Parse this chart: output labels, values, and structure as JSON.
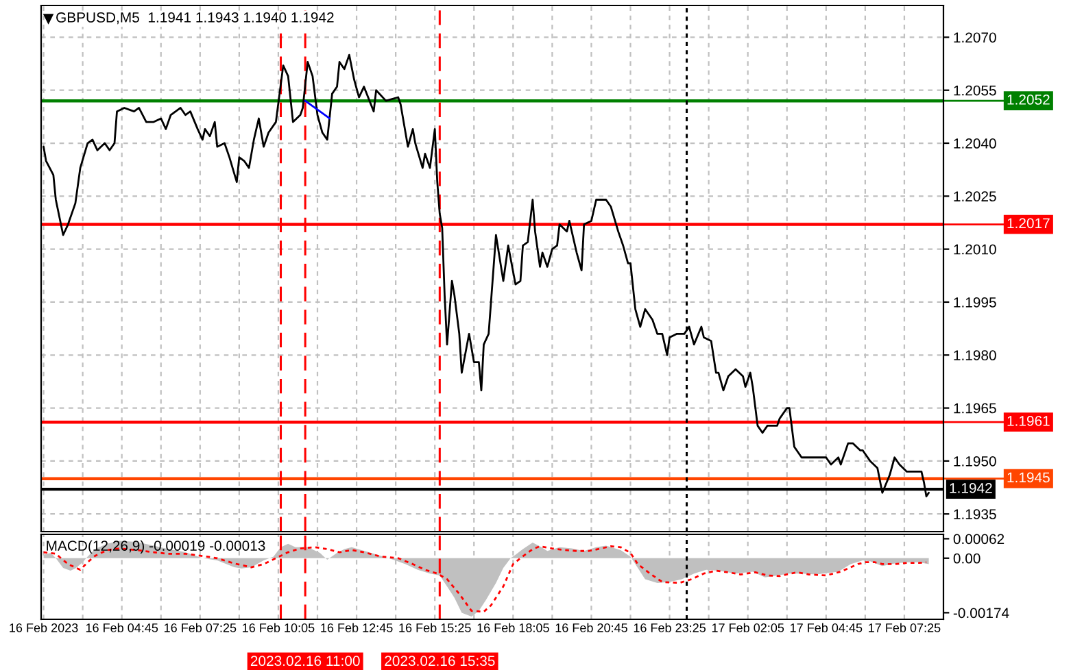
{
  "chart_data": [
    {
      "type": "line",
      "title": "GBPUSD,M5  1.1941 1.1943 1.1940 1.1942",
      "xlim": [
        "2023-02-16T02:00",
        "2023-02-17T08:45"
      ],
      "xticks": [
        {
          "value": "2023-02-16T02:05",
          "label": null
        },
        {
          "value": "2023-02-16T03:25",
          "label": null
        },
        {
          "value": "2023-02-16T04:45",
          "label": null
        },
        {
          "value": "2023-02-16T06:05",
          "label": null
        },
        {
          "value": "2023-02-16T07:25",
          "label": null
        },
        {
          "value": "2023-02-16T08:45",
          "label": null
        },
        {
          "value": "2023-02-16T10:05",
          "label": null
        },
        {
          "value": "2023-02-16T11:25",
          "label": null
        },
        {
          "value": "2023-02-16T12:45",
          "label": null
        },
        {
          "value": "2023-02-16T14:05",
          "label": null
        },
        {
          "value": "2023-02-16T15:25",
          "label": null
        },
        {
          "value": "2023-02-16T16:45",
          "label": null
        },
        {
          "value": "2023-02-16T18:05",
          "label": null
        },
        {
          "value": "2023-02-16T19:25",
          "label": null
        },
        {
          "value": "2023-02-16T20:45",
          "label": null
        },
        {
          "value": "2023-02-16T22:05",
          "label": null
        },
        {
          "value": "2023-02-16T23:25",
          "label": null
        },
        {
          "value": "2023-02-17T00:45",
          "label": null
        },
        {
          "value": "2023-02-17T02:05",
          "label": null
        },
        {
          "value": "2023-02-17T03:25",
          "label": null
        },
        {
          "value": "2023-02-17T04:45",
          "label": null
        },
        {
          "value": "2023-02-17T06:05",
          "label": null
        },
        {
          "value": "2023-02-17T07:25",
          "label": null
        }
      ],
      "ylim": [
        1.193,
        1.2079
      ],
      "yticks": [
        1.1935,
        {
          "value": 1.195,
          "label": "1.1950"
        },
        1.1965,
        {
          "value": 1.198,
          "label": "1.1980"
        },
        1.1995,
        {
          "value": 1.201,
          "label": "1.2010"
        },
        1.2025,
        {
          "value": 1.204,
          "label": "1.2040"
        },
        1.2055,
        {
          "value": 1.207,
          "label": "1.2070"
        }
      ],
      "grid": true,
      "tick_labels": "y",
      "ref_lines": [
        {
          "axis": "y",
          "value": 1.2052,
          "label": "1.2052",
          "color": "#008000"
        },
        {
          "axis": "y",
          "value": 1.2017,
          "label": "1.2017",
          "color": "#ff0000"
        },
        {
          "axis": "y",
          "value": 1.1961,
          "label": "1.1961",
          "color": "#ff0000"
        },
        {
          "axis": "y",
          "value": 1.1945,
          "label": "1.1945",
          "color": "#ff4500"
        },
        {
          "axis": "y",
          "value": 1.1942,
          "label": "1.1942",
          "color": "#000000"
        },
        {
          "axis": "x",
          "value": "2023-02-16T10:10",
          "color": "#ff0000",
          "line_style": "dashed"
        },
        {
          "axis": "x",
          "value": "2023-02-16T11:00",
          "color": "#ff0000",
          "line_style": "dashed"
        },
        {
          "axis": "x",
          "value": "2023-02-16T15:35",
          "color": "#ff0000",
          "line_style": "dashed"
        },
        {
          "axis": "x",
          "value": "2023-02-17T00:00",
          "color": "#000000",
          "line_style": "dotted"
        }
      ],
      "series": [
        {
          "color": "#000000",
          "x": [
            "2023-02-16T02:05",
            "2023-02-16T02:10",
            "2023-02-16T02:25",
            "2023-02-16T02:30",
            "2023-02-16T02:45",
            "2023-02-16T02:55",
            "2023-02-16T03:10",
            "2023-02-16T03:20",
            "2023-02-16T03:35",
            "2023-02-16T03:45",
            "2023-02-16T03:55",
            "2023-02-16T04:10",
            "2023-02-16T04:20",
            "2023-02-16T04:30",
            "2023-02-16T04:35",
            "2023-02-16T04:50",
            "2023-02-16T05:10",
            "2023-02-16T05:20",
            "2023-02-16T05:35",
            "2023-02-16T05:50",
            "2023-02-16T06:05",
            "2023-02-16T06:15",
            "2023-02-16T06:25",
            "2023-02-16T06:45",
            "2023-02-16T06:55",
            "2023-02-16T07:05",
            "2023-02-16T07:20",
            "2023-02-16T07:30",
            "2023-02-16T07:35",
            "2023-02-16T07:45",
            "2023-02-16T07:55",
            "2023-02-16T08:00",
            "2023-02-16T08:15",
            "2023-02-16T08:25",
            "2023-02-16T08:40",
            "2023-02-16T08:45",
            "2023-02-16T08:55",
            "2023-02-16T09:05",
            "2023-02-16T09:15",
            "2023-02-16T09:25",
            "2023-02-16T09:35",
            "2023-02-16T09:45",
            "2023-02-16T10:00",
            "2023-02-16T10:15",
            "2023-02-16T10:25",
            "2023-02-16T10:35",
            "2023-02-16T10:50",
            "2023-02-16T10:55",
            "2023-02-16T11:05",
            "2023-02-16T11:15",
            "2023-02-16T11:25",
            "2023-02-16T11:35",
            "2023-02-16T11:45",
            "2023-02-16T11:55",
            "2023-02-16T12:05",
            "2023-02-16T12:10",
            "2023-02-16T12:20",
            "2023-02-16T12:30",
            "2023-02-16T12:40",
            "2023-02-16T12:50",
            "2023-02-16T13:00",
            "2023-02-16T13:20",
            "2023-02-16T13:25",
            "2023-02-16T13:45",
            "2023-02-16T14:10",
            "2023-02-16T14:15",
            "2023-02-16T14:30",
            "2023-02-16T14:40",
            "2023-02-16T14:45",
            "2023-02-16T15:00",
            "2023-02-16T15:05",
            "2023-02-16T15:15",
            "2023-02-16T15:25",
            "2023-02-16T15:30",
            "2023-02-16T15:35",
            "2023-02-16T15:40",
            "2023-02-16T15:45",
            "2023-02-16T15:50",
            "2023-02-16T16:00",
            "2023-02-16T16:05",
            "2023-02-16T16:15",
            "2023-02-16T16:20",
            "2023-02-16T16:35",
            "2023-02-16T16:45",
            "2023-02-16T16:55",
            "2023-02-16T17:00",
            "2023-02-16T17:05",
            "2023-02-16T17:15",
            "2023-02-16T17:30",
            "2023-02-16T17:45",
            "2023-02-16T17:55",
            "2023-02-16T18:10",
            "2023-02-16T18:20",
            "2023-02-16T18:25",
            "2023-02-16T18:35",
            "2023-02-16T18:45",
            "2023-02-16T18:50",
            "2023-02-16T19:00",
            "2023-02-16T19:05",
            "2023-02-16T19:15",
            "2023-02-16T19:25",
            "2023-02-16T19:35",
            "2023-02-16T19:40",
            "2023-02-16T19:55",
            "2023-02-16T20:00",
            "2023-02-16T20:15",
            "2023-02-16T20:25",
            "2023-02-16T20:30",
            "2023-02-16T20:45",
            "2023-02-16T20:55",
            "2023-02-16T21:15",
            "2023-02-16T21:25",
            "2023-02-16T21:40",
            "2023-02-16T21:50",
            "2023-02-16T22:00",
            "2023-02-16T22:05",
            "2023-02-16T22:15",
            "2023-02-16T22:25",
            "2023-02-16T22:35",
            "2023-02-16T22:50",
            "2023-02-16T23:00",
            "2023-02-16T23:10",
            "2023-02-16T23:20",
            "2023-02-16T23:25",
            "2023-02-16T23:40",
            "2023-02-16T23:55",
            "2023-02-17T00:05",
            "2023-02-17T00:15",
            "2023-02-17T00:30",
            "2023-02-17T00:35",
            "2023-02-17T00:50",
            "2023-02-17T01:00",
            "2023-02-17T01:05",
            "2023-02-17T01:15",
            "2023-02-17T01:25",
            "2023-02-17T01:40",
            "2023-02-17T01:55",
            "2023-02-17T02:00",
            "2023-02-17T02:10",
            "2023-02-17T02:15",
            "2023-02-17T02:25",
            "2023-02-17T02:35",
            "2023-02-17T02:45",
            "2023-02-17T03:05",
            "2023-02-17T03:10",
            "2023-02-17T03:25",
            "2023-02-17T03:30",
            "2023-02-17T03:40",
            "2023-02-17T03:55",
            "2023-02-17T04:00",
            "2023-02-17T04:10",
            "2023-02-17T04:25",
            "2023-02-17T04:45",
            "2023-02-17T04:55",
            "2023-02-17T05:10",
            "2023-02-17T05:15",
            "2023-02-17T05:30",
            "2023-02-17T05:40",
            "2023-02-17T05:55",
            "2023-02-17T06:00",
            "2023-02-17T06:15",
            "2023-02-17T06:30",
            "2023-02-17T06:40",
            "2023-02-17T06:55",
            "2023-02-17T07:05",
            "2023-02-17T07:15",
            "2023-02-17T07:30",
            "2023-02-17T07:40",
            "2023-02-17T08:00",
            "2023-02-17T08:05",
            "2023-02-17T08:10",
            "2023-02-17T08:15"
          ],
          "values": [
            1.2039,
            1.2035,
            1.2031,
            1.2024,
            1.2014,
            1.2017,
            1.2023,
            1.2033,
            1.204,
            1.2041,
            1.2038,
            1.204,
            1.2038,
            1.204,
            1.2049,
            1.205,
            1.2049,
            1.205,
            1.2046,
            1.2046,
            1.2047,
            1.2044,
            1.2048,
            1.205,
            1.2048,
            1.2049,
            1.2044,
            1.2041,
            1.2044,
            1.2042,
            1.2046,
            1.2039,
            1.204,
            1.2036,
            1.2029,
            1.2036,
            1.2035,
            1.2033,
            1.2041,
            1.2047,
            1.2039,
            1.2043,
            1.2046,
            1.2062,
            1.2059,
            1.2046,
            1.2048,
            1.205,
            1.2063,
            1.2059,
            1.2048,
            1.2043,
            1.2041,
            1.2054,
            1.2056,
            1.2063,
            1.2061,
            1.2065,
            1.2058,
            1.2053,
            1.2056,
            1.2049,
            1.2055,
            1.2052,
            1.2053,
            1.2051,
            1.2039,
            1.2044,
            1.204,
            1.2033,
            1.2037,
            1.2033,
            1.2044,
            1.2029,
            1.202,
            1.2016,
            1.1997,
            1.1983,
            1.2001,
            1.1997,
            1.1986,
            1.1975,
            1.1986,
            1.1978,
            1.1978,
            1.197,
            1.1983,
            1.1986,
            1.2014,
            1.2001,
            1.2011,
            1.2,
            1.2001,
            1.2011,
            1.2012,
            1.2024,
            1.2015,
            1.2005,
            1.2009,
            1.2005,
            1.201,
            1.2011,
            1.2017,
            1.2015,
            1.2018,
            1.2009,
            1.2004,
            1.2017,
            1.2018,
            1.2024,
            1.2024,
            1.2022,
            1.2015,
            1.2011,
            1.2006,
            1.2006,
            1.1993,
            1.1988,
            1.1993,
            1.199,
            1.1986,
            1.1986,
            1.198,
            1.1985,
            1.1986,
            1.1986,
            1.1988,
            1.1983,
            1.1988,
            1.1985,
            1.1984,
            1.1975,
            1.1975,
            1.197,
            1.1974,
            1.1976,
            1.1974,
            1.1971,
            1.1975,
            1.1971,
            1.196,
            1.1958,
            1.196,
            1.196,
            1.1962,
            1.1965,
            1.1965,
            1.1954,
            1.1951,
            1.1951,
            1.1951,
            1.1951,
            1.1951,
            1.1949,
            1.1951,
            1.1949,
            1.1955,
            1.1955,
            1.1953,
            1.1953,
            1.195,
            1.1948,
            1.1941,
            1.1946,
            1.1951,
            1.1949,
            1.1947,
            1.1947,
            1.1947,
            1.1944,
            1.194,
            1.1941
          ]
        },
        {
          "color": "#0000ff",
          "x": [
            "2023-02-16T11:00",
            "2023-02-16T11:50"
          ],
          "values": [
            1.2052,
            1.2047
          ]
        }
      ]
    },
    {
      "type": "area",
      "title": "MACD(12,26,9) -0.00019 -0.00013",
      "xlim": [
        "2023-02-16T02:00",
        "2023-02-17T08:45"
      ],
      "xticks": [
        {
          "value": "2023-02-16T02:05",
          "label": "16 Feb 2023"
        },
        {
          "value": "2023-02-16T03:25",
          "label": null
        },
        {
          "value": "2023-02-16T04:45",
          "label": "16 Feb 04:45"
        },
        {
          "value": "2023-02-16T06:05",
          "label": null
        },
        {
          "value": "2023-02-16T07:25",
          "label": "16 Feb 07:25"
        },
        {
          "value": "2023-02-16T08:45",
          "label": null
        },
        {
          "value": "2023-02-16T10:05",
          "label": "16 Feb 10:05"
        },
        {
          "value": "2023-02-16T11:25",
          "label": null
        },
        {
          "value": "2023-02-16T12:45",
          "label": "16 Feb 12:45"
        },
        {
          "value": "2023-02-16T14:05",
          "label": null
        },
        {
          "value": "2023-02-16T15:25",
          "label": "16 Feb 15:25"
        },
        {
          "value": "2023-02-16T16:45",
          "label": null
        },
        {
          "value": "2023-02-16T18:05",
          "label": "16 Feb 18:05"
        },
        {
          "value": "2023-02-16T19:25",
          "label": null
        },
        {
          "value": "2023-02-16T20:45",
          "label": "16 Feb 20:45"
        },
        {
          "value": "2023-02-16T22:05",
          "label": null
        },
        {
          "value": "2023-02-16T23:25",
          "label": "16 Feb 23:25"
        },
        {
          "value": "2023-02-17T00:45",
          "label": null
        },
        {
          "value": "2023-02-17T02:05",
          "label": "17 Feb 02:05"
        },
        {
          "value": "2023-02-17T03:25",
          "label": null
        },
        {
          "value": "2023-02-17T04:45",
          "label": "17 Feb 04:45"
        },
        {
          "value": "2023-02-17T06:05",
          "label": null
        },
        {
          "value": "2023-02-17T07:25",
          "label": "17 Feb 07:25"
        }
      ],
      "ylim": [
        -0.00195,
        0.00076
      ],
      "yticks": [
        0.00062,
        {
          "value": 0,
          "label": "0.00"
        },
        -0.00174
      ],
      "grid": "x",
      "ref_lines": [
        {
          "axis": "x",
          "value": "2023-02-16T10:10",
          "color": "#ff0000",
          "line_style": "dashed"
        },
        {
          "axis": "x",
          "value": "2023-02-16T11:00",
          "label": "2023.02.16 11:00",
          "color": "#ff0000",
          "line_style": "dashed"
        },
        {
          "axis": "x",
          "value": "2023-02-16T15:35",
          "label": "2023.02.16 15:35",
          "color": "#ff0000",
          "line_style": "dashed"
        },
        {
          "axis": "x",
          "value": "2023-02-17T00:00",
          "color": "#000000",
          "line_style": "dotted"
        }
      ],
      "series": [
        {
          "type": "area",
          "color": "#c0c0c0",
          "x": [
            "2023-02-16T02:05",
            "2023-02-16T02:20",
            "2023-02-16T02:30",
            "2023-02-16T02:45",
            "2023-02-16T03:00",
            "2023-02-16T03:10",
            "2023-02-16T03:25",
            "2023-02-16T03:35",
            "2023-02-16T03:50",
            "2023-02-16T04:15",
            "2023-02-16T04:40",
            "2023-02-16T05:15",
            "2023-02-16T05:50",
            "2023-02-16T06:20",
            "2023-02-16T06:55",
            "2023-02-16T07:30",
            "2023-02-16T08:00",
            "2023-02-16T08:35",
            "2023-02-16T08:50",
            "2023-02-16T09:10",
            "2023-02-16T09:35",
            "2023-02-16T09:55",
            "2023-02-16T10:10",
            "2023-02-16T10:25",
            "2023-02-16T10:40",
            "2023-02-16T11:05",
            "2023-02-16T11:30",
            "2023-02-16T11:45",
            "2023-02-16T12:05",
            "2023-02-16T12:20",
            "2023-02-16T12:35",
            "2023-02-16T12:55",
            "2023-02-16T13:10",
            "2023-02-16T13:35",
            "2023-02-16T14:00",
            "2023-02-16T14:25",
            "2023-02-16T14:50",
            "2023-02-16T15:15",
            "2023-02-16T15:35",
            "2023-02-16T15:50",
            "2023-02-16T16:05",
            "2023-02-16T16:20",
            "2023-02-16T16:40",
            "2023-02-16T16:55",
            "2023-02-16T17:10",
            "2023-02-16T17:30",
            "2023-02-16T17:45",
            "2023-02-16T18:00",
            "2023-02-16T18:10",
            "2023-02-16T18:25",
            "2023-02-16T18:45",
            "2023-02-16T19:00",
            "2023-02-16T19:15",
            "2023-02-16T19:40",
            "2023-02-16T20:05",
            "2023-02-16T20:30",
            "2023-02-16T20:55",
            "2023-02-16T21:15",
            "2023-02-16T21:45",
            "2023-02-16T22:05",
            "2023-02-16T22:20",
            "2023-02-16T22:35",
            "2023-02-16T23:00",
            "2023-02-16T23:25",
            "2023-02-16T23:50",
            "2023-02-17T00:15",
            "2023-02-17T00:40",
            "2023-02-17T01:05",
            "2023-02-17T01:40",
            "2023-02-17T02:15",
            "2023-02-17T02:40",
            "2023-02-17T03:05",
            "2023-02-17T03:30",
            "2023-02-17T03:55",
            "2023-02-17T04:25",
            "2023-02-17T05:10",
            "2023-02-17T05:35",
            "2023-02-17T06:00",
            "2023-02-17T06:15",
            "2023-02-17T06:40",
            "2023-02-17T07:05",
            "2023-02-17T07:30",
            "2023-02-17T07:55",
            "2023-02-17T08:15"
          ],
          "values": [
            0.00011,
            0.00017,
            0,
            -0.00031,
            -0.0004,
            -0.00033,
            -0.00013,
            5e-05,
            0.00029,
            0.00046,
            0.00055,
            0.00052,
            0.0004,
            0.00029,
            0.00019,
            0,
            -7e-05,
            -0.00029,
            -0.00033,
            -0.00029,
            -7e-05,
            5e-05,
            0.00035,
            0.00046,
            0.00035,
            0.00035,
            0.00017,
            -5e-05,
            0.00017,
            0.00029,
            0.00035,
            0.00026,
            0.00019,
            7e-05,
            -5e-05,
            -0.00019,
            -0.00037,
            -0.00049,
            -0.00055,
            -0.0009,
            -0.00126,
            -0.00174,
            -0.00186,
            -0.00168,
            -0.00132,
            -0.00079,
            -0.00031,
            0,
            0.00011,
            0.00029,
            0.0005,
            0.00038,
            0.00023,
            0.00035,
            0.00031,
            0.00023,
            0.00035,
            0.0004,
            0.00026,
            5e-05,
            -0.00031,
            -0.00067,
            -0.00079,
            -0.00076,
            -0.00067,
            -0.00049,
            -0.00037,
            -0.0004,
            -0.00049,
            -0.00043,
            -0.00061,
            -0.00055,
            -0.00049,
            -0.00049,
            -0.00052,
            -0.00043,
            -0.00019,
            -7e-05,
            -0.0001,
            -0.00025,
            -0.00017,
            -0.00013,
            -0.00013,
            -0.00019
          ]
        },
        {
          "type": "line",
          "color": "#ff0000",
          "line_style": "dotted",
          "x": [
            "2023-02-16T02:05",
            "2023-02-16T02:30",
            "2023-02-16T02:55",
            "2023-02-16T03:20",
            "2023-02-16T03:35",
            "2023-02-16T03:50",
            "2023-02-16T04:15",
            "2023-02-16T04:40",
            "2023-02-16T05:15",
            "2023-02-16T05:50",
            "2023-02-16T06:20",
            "2023-02-16T06:55",
            "2023-02-16T07:30",
            "2023-02-16T08:00",
            "2023-02-16T08:35",
            "2023-02-16T09:10",
            "2023-02-16T09:35",
            "2023-02-16T10:00",
            "2023-02-16T10:25",
            "2023-02-16T10:50",
            "2023-02-16T11:20",
            "2023-02-16T11:45",
            "2023-02-16T12:10",
            "2023-02-16T12:35",
            "2023-02-16T13:00",
            "2023-02-16T13:35",
            "2023-02-16T14:10",
            "2023-02-16T14:40",
            "2023-02-16T15:05",
            "2023-02-16T15:30",
            "2023-02-16T15:50",
            "2023-02-16T16:15",
            "2023-02-16T16:40",
            "2023-02-16T17:05",
            "2023-02-16T17:20",
            "2023-02-16T17:45",
            "2023-02-16T18:05",
            "2023-02-16T18:20",
            "2023-02-16T18:45",
            "2023-02-16T19:00",
            "2023-02-16T19:25",
            "2023-02-16T19:50",
            "2023-02-16T20:15",
            "2023-02-16T20:40",
            "2023-02-16T21:05",
            "2023-02-16T21:25",
            "2023-02-16T21:45",
            "2023-02-16T22:05",
            "2023-02-16T22:20",
            "2023-02-16T22:45",
            "2023-02-16T23:10",
            "2023-02-16T23:45",
            "2023-02-17T00:10",
            "2023-02-17T00:35",
            "2023-02-17T01:00",
            "2023-02-17T01:25",
            "2023-02-17T01:50",
            "2023-02-17T02:20",
            "2023-02-17T02:45",
            "2023-02-17T03:10",
            "2023-02-17T03:45",
            "2023-02-17T04:10",
            "2023-02-17T04:45",
            "2023-02-17T05:15",
            "2023-02-17T05:50",
            "2023-02-17T06:05",
            "2023-02-17T06:25",
            "2023-02-17T06:40",
            "2023-02-17T07:05",
            "2023-02-17T07:30",
            "2023-02-17T07:55",
            "2023-02-17T08:10"
          ],
          "values": [
            0.00019,
            0.00014,
            -0.00019,
            -0.00037,
            -0.00013,
            7e-05,
            0.00026,
            0.00031,
            0.00026,
            0.00019,
            0.00014,
            0.00014,
            7e-05,
            0,
            -0.00017,
            -0.00029,
            -0.00019,
            0,
            0.00019,
            0.00031,
            0.00035,
            0.00029,
            0.00019,
            0.00026,
            0.00019,
            5e-05,
            0,
            -0.00019,
            -0.00037,
            -0.00049,
            -0.00067,
            -0.00114,
            -0.00168,
            -0.00171,
            -0.0015,
            -0.0009,
            -0.00019,
            0,
            0.00029,
            0.00038,
            0.00031,
            0.00026,
            0.00023,
            0.00023,
            0.00031,
            0.00038,
            0.00035,
            0.00017,
            -0.00019,
            -0.00049,
            -0.00076,
            -0.00079,
            -0.00067,
            -0.00049,
            -0.0004,
            -0.00045,
            -0.00052,
            -0.00045,
            -0.00055,
            -0.00057,
            -0.00045,
            -0.00052,
            -0.00055,
            -0.00043,
            -0.00019,
            -0.00013,
            -0.00013,
            -0.00019,
            -0.00019,
            -0.00015,
            -0.00015,
            -0.00013
          ]
        }
      ]
    }
  ]
}
